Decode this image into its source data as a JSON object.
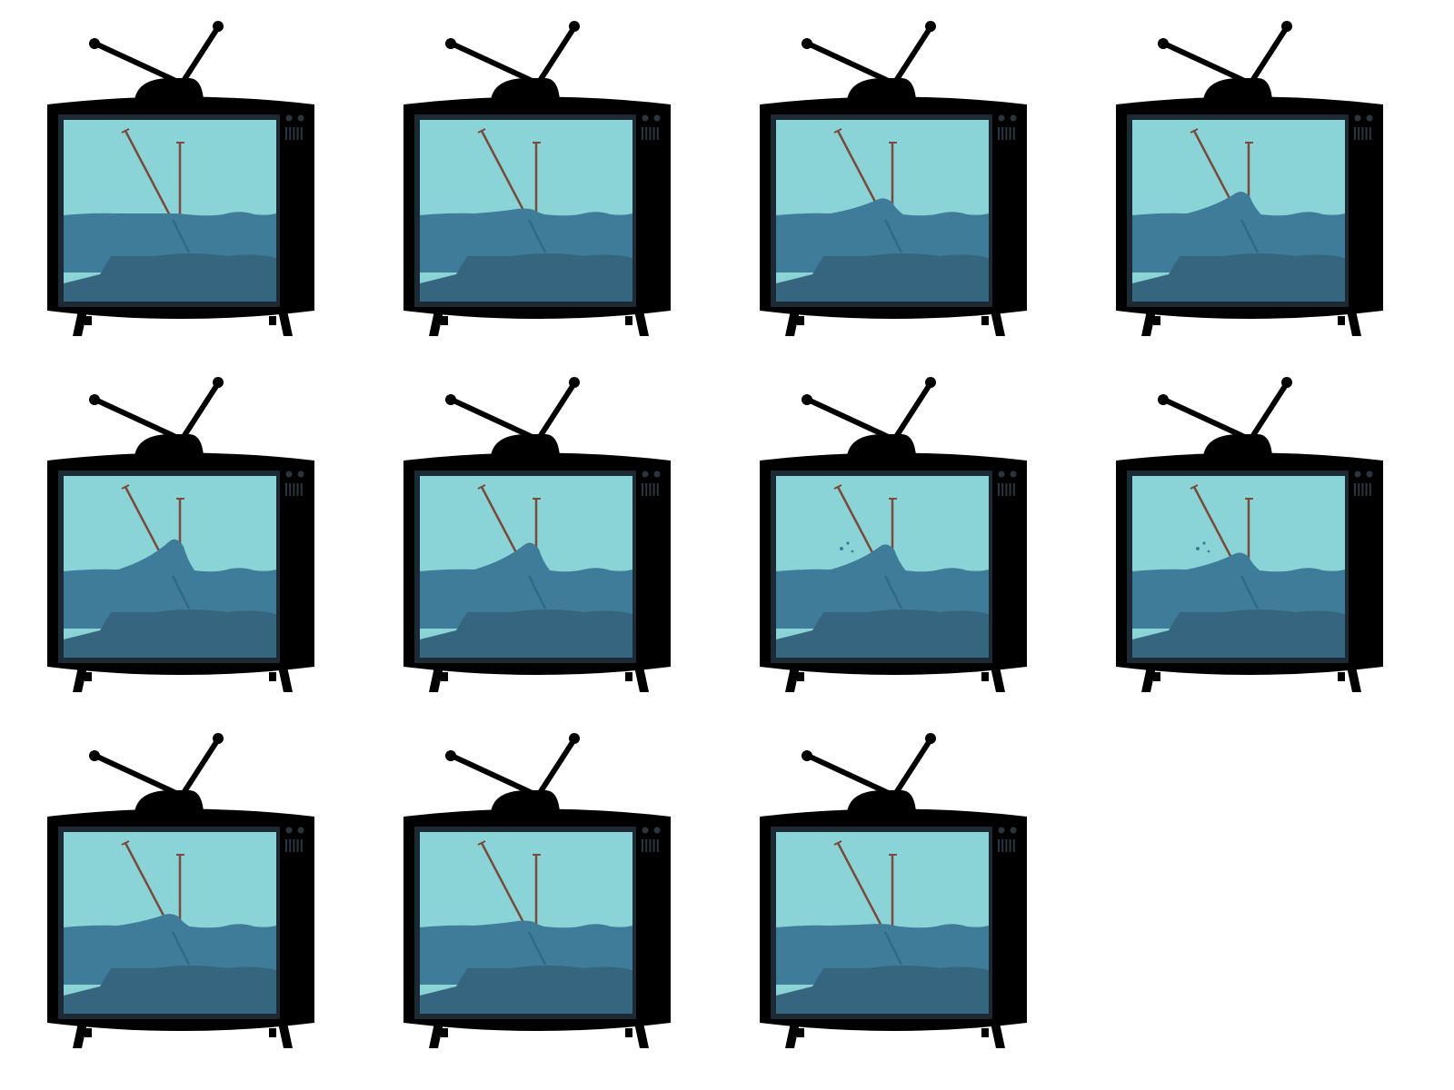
{
  "colors": {
    "background": "#ffffff",
    "tv_body": "#000000",
    "bezel": "#1c2a36",
    "sky": "#8ad3d6",
    "sea": "#3f7c9a",
    "seabed": "#36667f",
    "pole": "#7a4a3a",
    "foam": "#8ad3d6"
  },
  "frames": [
    {
      "id": 1,
      "wave_stage": "calm",
      "wave_height": 0.0
    },
    {
      "id": 2,
      "wave_stage": "ripple",
      "wave_height": 0.15
    },
    {
      "id": 3,
      "wave_stage": "rising",
      "wave_height": 0.45
    },
    {
      "id": 4,
      "wave_stage": "building",
      "wave_height": 0.65
    },
    {
      "id": 5,
      "wave_stage": "cresting",
      "wave_height": 0.9
    },
    {
      "id": 6,
      "wave_stage": "curling",
      "wave_height": 0.8
    },
    {
      "id": 7,
      "wave_stage": "breaking",
      "wave_height": 0.75
    },
    {
      "id": 8,
      "wave_stage": "splashing",
      "wave_height": 0.5
    },
    {
      "id": 9,
      "wave_stage": "receding",
      "wave_height": 0.35
    },
    {
      "id": 10,
      "wave_stage": "settling",
      "wave_height": 0.15
    },
    {
      "id": 11,
      "wave_stage": "calm-again",
      "wave_height": 0.05
    }
  ]
}
